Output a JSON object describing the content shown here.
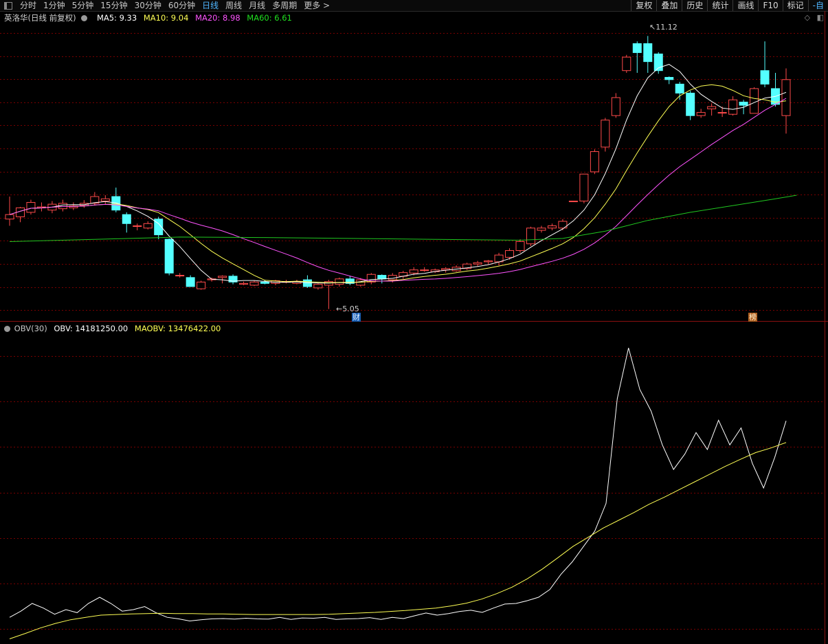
{
  "toolbar": {
    "tabs": [
      "分时",
      "1分钟",
      "5分钟",
      "15分钟",
      "30分钟",
      "60分钟",
      "日线",
      "周线",
      "月线",
      "多周期",
      "更多 >"
    ],
    "active_index": 6,
    "right_buttons": [
      "复权",
      "叠加",
      "历史",
      "统计",
      "画线",
      "F10",
      "标记",
      "-自"
    ]
  },
  "main_legend": {
    "stock_label": "英洛华(日线 前复权)",
    "ma5": "MA5: 9.33",
    "ma10": "MA10: 9.04",
    "ma20": "MA20: 8.98",
    "ma60": "MA60: 6.61"
  },
  "sub_legend": {
    "indicator": "OBV(30)",
    "obv": "OBV: 14181250.00",
    "maobv": "MAOBV: 13476422.00"
  },
  "annotations": {
    "high_label": "11.12",
    "low_label": "5.05",
    "badge_cai": "财",
    "badge_bang": "榜"
  },
  "colors": {
    "up": "#ff4a4a",
    "down": "#54ffff",
    "ma5": "#ffffff",
    "ma10": "#ffff54",
    "ma20": "#ff54ff",
    "ma60": "#20c820",
    "obv": "#ffffff",
    "maobv": "#ffff54",
    "grid": "#7a0000"
  },
  "chart_data": [
    {
      "type": "candlestick",
      "price_range": [
        4.8,
        11.4
      ],
      "candles": [
        [
          7.05,
          7.15,
          7.55,
          6.9
        ],
        [
          7.1,
          7.3,
          7.32,
          6.98
        ],
        [
          7.2,
          7.42,
          7.48,
          7.15
        ],
        [
          7.3,
          7.32,
          7.42,
          7.22
        ],
        [
          7.25,
          7.38,
          7.45,
          7.18
        ],
        [
          7.28,
          7.4,
          7.48,
          7.22
        ],
        [
          7.3,
          7.34,
          7.42,
          7.25
        ],
        [
          7.35,
          7.4,
          7.47,
          7.3
        ],
        [
          7.4,
          7.55,
          7.65,
          7.35
        ],
        [
          7.45,
          7.5,
          7.58,
          7.38
        ],
        [
          7.55,
          7.25,
          7.75,
          7.2
        ],
        [
          7.15,
          6.95,
          7.2,
          6.75
        ],
        [
          6.9,
          6.9,
          6.95,
          6.8
        ],
        [
          6.85,
          6.95,
          7.0,
          6.82
        ],
        [
          7.05,
          6.7,
          7.1,
          6.6
        ],
        [
          6.6,
          5.85,
          6.62,
          5.8
        ],
        [
          5.8,
          5.8,
          5.85,
          5.75
        ],
        [
          5.75,
          5.55,
          5.8,
          5.55
        ],
        [
          5.5,
          5.65,
          5.68,
          5.48
        ],
        [
          5.7,
          5.72,
          5.75,
          5.66
        ],
        [
          5.75,
          5.78,
          5.8,
          5.62
        ],
        [
          5.78,
          5.65,
          5.82,
          5.6
        ],
        [
          5.6,
          5.62,
          5.66,
          5.58
        ],
        [
          5.58,
          5.65,
          5.68,
          5.56
        ],
        [
          5.65,
          5.62,
          5.7,
          5.6
        ],
        [
          5.62,
          5.68,
          5.7,
          5.58
        ],
        [
          5.66,
          5.66,
          5.7,
          5.62
        ],
        [
          5.62,
          5.66,
          5.7,
          5.6
        ],
        [
          5.7,
          5.55,
          5.8,
          5.52
        ],
        [
          5.52,
          5.6,
          5.62,
          5.48
        ],
        [
          5.58,
          5.66,
          5.7,
          5.05
        ],
        [
          5.6,
          5.72,
          5.75,
          5.55
        ],
        [
          5.72,
          5.62,
          5.78,
          5.58
        ],
        [
          5.58,
          5.7,
          5.74,
          5.55
        ],
        [
          5.65,
          5.82,
          5.85,
          5.6
        ],
        [
          5.8,
          5.72,
          5.82,
          5.62
        ],
        [
          5.7,
          5.8,
          5.85,
          5.64
        ],
        [
          5.78,
          5.86,
          5.9,
          5.72
        ],
        [
          5.85,
          5.92,
          5.98,
          5.8
        ],
        [
          5.92,
          5.92,
          5.98,
          5.88
        ],
        [
          5.88,
          5.92,
          5.95,
          5.85
        ],
        [
          5.92,
          5.95,
          5.98,
          5.86
        ],
        [
          5.9,
          5.98,
          6.02,
          5.88
        ],
        [
          5.95,
          6.05,
          6.08,
          5.92
        ],
        [
          6.05,
          6.08,
          6.12,
          6.0
        ],
        [
          6.1,
          6.12,
          6.14,
          6.05
        ],
        [
          6.1,
          6.25,
          6.3,
          6.02
        ],
        [
          6.2,
          6.35,
          6.4,
          6.15
        ],
        [
          6.35,
          6.55,
          6.6,
          6.3
        ],
        [
          6.5,
          6.85,
          6.88,
          6.45
        ],
        [
          6.8,
          6.85,
          6.9,
          6.75
        ],
        [
          6.85,
          6.9,
          6.95,
          6.8
        ],
        [
          6.85,
          7.0,
          7.05,
          6.8
        ],
        [
          7.45,
          7.45,
          7.45,
          7.45
        ],
        [
          7.45,
          8.05,
          8.05,
          7.4
        ],
        [
          8.1,
          8.55,
          8.6,
          8.05
        ],
        [
          8.65,
          9.25,
          9.3,
          8.55
        ],
        [
          9.35,
          9.75,
          9.85,
          9.3
        ],
        [
          10.35,
          10.65,
          10.7,
          10.3
        ],
        [
          10.95,
          10.75,
          11.0,
          10.3
        ],
        [
          10.95,
          10.55,
          11.12,
          10.3
        ],
        [
          10.72,
          10.35,
          10.76,
          10.28
        ],
        [
          10.2,
          10.15,
          10.22,
          10.05
        ],
        [
          10.05,
          9.85,
          10.1,
          9.7
        ],
        [
          9.85,
          9.35,
          9.9,
          9.25
        ],
        [
          9.35,
          9.42,
          9.5,
          9.3
        ],
        [
          9.5,
          9.55,
          9.62,
          9.35
        ],
        [
          9.42,
          9.42,
          9.55,
          9.32
        ],
        [
          9.38,
          9.7,
          9.78,
          9.35
        ],
        [
          9.65,
          9.58,
          9.7,
          9.38
        ],
        [
          9.4,
          9.95,
          9.98,
          9.4
        ],
        [
          10.35,
          10.05,
          11.0,
          9.98
        ],
        [
          9.95,
          9.6,
          10.3,
          9.55
        ],
        [
          9.35,
          10.15,
          10.4,
          8.95
        ]
      ],
      "ma60": [
        [
          0,
          6.55
        ],
        [
          8,
          6.6
        ],
        [
          16,
          6.65
        ],
        [
          24,
          6.64
        ],
        [
          32,
          6.62
        ],
        [
          40,
          6.6
        ],
        [
          48,
          6.58
        ],
        [
          52,
          6.62
        ],
        [
          56,
          6.78
        ],
        [
          60,
          7.02
        ],
        [
          64,
          7.2
        ],
        [
          68,
          7.35
        ],
        [
          72,
          7.5
        ],
        [
          74,
          7.58
        ]
      ]
    },
    {
      "type": "line",
      "title": "OBV(30)",
      "obv_range": [
        7000000,
        17000000
      ],
      "series": [
        {
          "name": "OBV",
          "values": [
            7800000,
            8000000,
            8250000,
            8100000,
            7900000,
            8050000,
            7950000,
            8250000,
            8450000,
            8250000,
            8000000,
            8050000,
            8150000,
            7950000,
            7800000,
            7750000,
            7680000,
            7720000,
            7750000,
            7760000,
            7740000,
            7770000,
            7750000,
            7740000,
            7800000,
            7730000,
            7780000,
            7770000,
            7800000,
            7730000,
            7750000,
            7760000,
            7790000,
            7730000,
            7800000,
            7760000,
            7850000,
            7940000,
            7870000,
            7920000,
            7990000,
            8030000,
            7960000,
            8100000,
            8230000,
            8250000,
            8340000,
            8450000,
            8700000,
            9200000,
            9600000,
            10100000,
            10600000,
            11500000,
            14900000,
            16550000,
            15200000,
            14500000,
            13400000,
            12600000,
            13100000,
            13800000,
            13250000,
            14200000,
            13400000,
            13950000,
            12800000,
            12000000,
            13000000,
            14181250
          ]
        },
        {
          "name": "MAOBV",
          "values": [
            7100000,
            7270000,
            7450000,
            7600000,
            7720000,
            7800000,
            7870000,
            7890000,
            7910000,
            7920000,
            7930000,
            7920000,
            7920000,
            7910000,
            7910000,
            7900000,
            7890000,
            7890000,
            7890000,
            7890000,
            7890000,
            7900000,
            7920000,
            7940000,
            7960000,
            7990000,
            8020000,
            8060000,
            8100000,
            8170000,
            8260000,
            8390000,
            8570000,
            8780000,
            9050000,
            9370000,
            9730000,
            10100000,
            10400000,
            10700000,
            10950000,
            11200000,
            11470000,
            11700000,
            11950000,
            12200000,
            12450000,
            12700000,
            12930000,
            13150000,
            13300000,
            13476422
          ]
        }
      ]
    }
  ]
}
